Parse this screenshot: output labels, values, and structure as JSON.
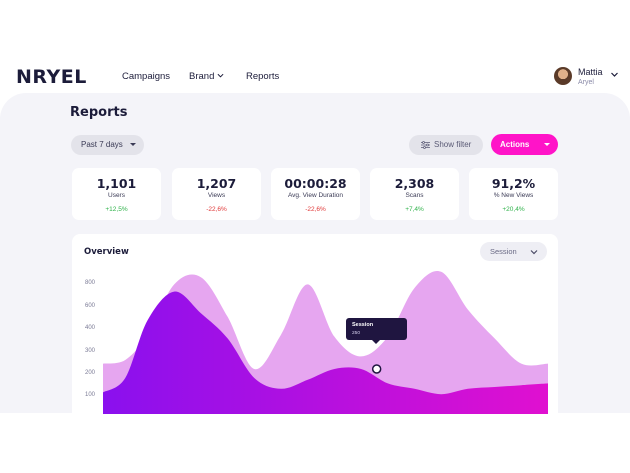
{
  "app": {
    "logo_text": "NRYEL",
    "accent": "#ff14c8",
    "dark": "#1c1c3a"
  },
  "nav": {
    "campaigns": "Campaigns",
    "brand": "Brand",
    "reports": "Reports"
  },
  "user": {
    "name": "Mattia",
    "brand": "Aryel"
  },
  "page": {
    "title": "Reports"
  },
  "controls": {
    "range": "Past 7 days",
    "filter": "Show filter",
    "actions": "Actions"
  },
  "kpis": [
    {
      "value": "1,101",
      "label": "Users",
      "delta": "+12,5%",
      "trend": "up"
    },
    {
      "value": "1,207",
      "label": "Views",
      "delta": "-22,6%",
      "trend": "down"
    },
    {
      "value": "00:00:28",
      "label": "Avg. View Duration",
      "delta": "-22,6%",
      "trend": "down"
    },
    {
      "value": "2,308",
      "label": "Scans",
      "delta": "+7,4%",
      "trend": "up"
    },
    {
      "value": "91,2%",
      "label": "% New Views",
      "delta": "+20,4%",
      "trend": "up"
    }
  ],
  "overview": {
    "title": "Overview",
    "metric_select": "Session",
    "y_ticks": [
      "800",
      "600",
      "400",
      "300",
      "200",
      "100"
    ],
    "tooltip": {
      "title": "Session",
      "value": "250"
    }
  },
  "chart_data": {
    "type": "area",
    "ylim": [
      0,
      900
    ],
    "grid": false,
    "legend": "none",
    "x": [
      0,
      0.05,
      0.1,
      0.16,
      0.22,
      0.28,
      0.34,
      0.4,
      0.46,
      0.52,
      0.58,
      0.64,
      0.7,
      0.76,
      0.82,
      0.88,
      0.94,
      1.0
    ],
    "series": [
      {
        "color": "#e6a6f0",
        "values": [
          280,
          300,
          440,
          720,
          760,
          540,
          250,
          440,
          720,
          430,
          320,
          430,
          700,
          790,
          580,
          420,
          280,
          280
        ]
      },
      {
        "color": "#a010e8",
        "values": [
          120,
          200,
          520,
          680,
          560,
          420,
          200,
          140,
          190,
          250,
          250,
          170,
          140,
          110,
          140,
          150,
          160,
          170
        ]
      }
    ],
    "highlight": {
      "x": 0.615,
      "y": 250
    }
  }
}
